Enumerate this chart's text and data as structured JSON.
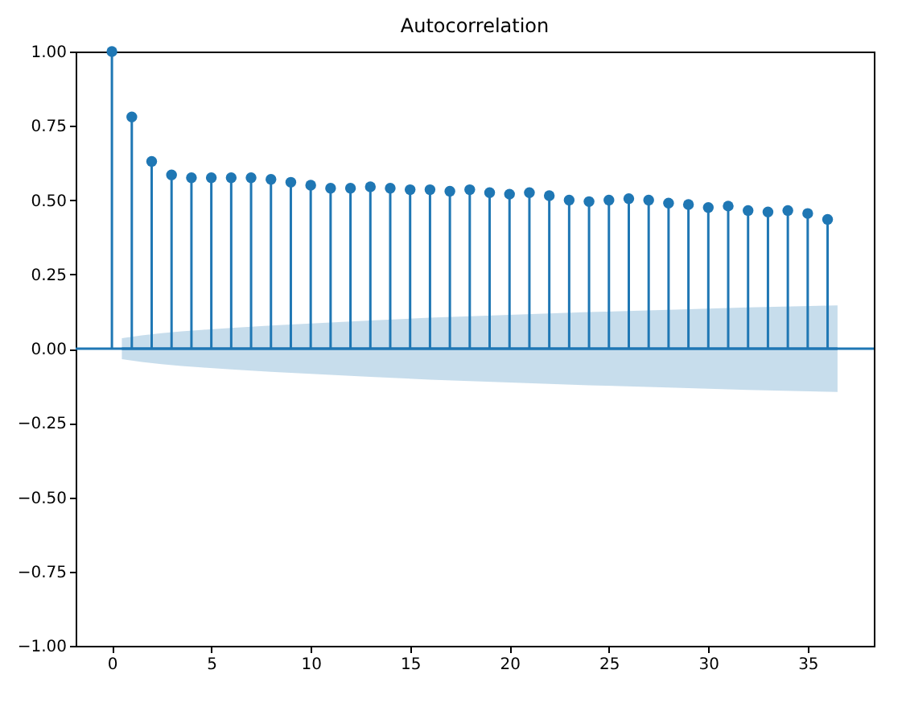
{
  "chart_data": {
    "type": "lollipop",
    "title": "Autocorrelation",
    "x": [
      0,
      1,
      2,
      3,
      4,
      5,
      6,
      7,
      8,
      9,
      10,
      11,
      12,
      13,
      14,
      15,
      16,
      17,
      18,
      19,
      20,
      21,
      22,
      23,
      24,
      25,
      26,
      27,
      28,
      29,
      30,
      31,
      32,
      33,
      34,
      35,
      36
    ],
    "series": [
      {
        "color": "#1f77b4",
        "marker": "circle",
        "values": [
          1.0,
          0.78,
          0.63,
          0.585,
          0.575,
          0.575,
          0.575,
          0.575,
          0.57,
          0.56,
          0.55,
          0.54,
          0.54,
          0.545,
          0.54,
          0.535,
          0.535,
          0.53,
          0.535,
          0.525,
          0.52,
          0.525,
          0.515,
          0.5,
          0.495,
          0.5,
          0.505,
          0.5,
          0.49,
          0.485,
          0.475,
          0.48,
          0.465,
          0.46,
          0.465,
          0.455,
          0.435
        ]
      },
      {
        "type": "line",
        "marker": "none",
        "color": "#1f77b4",
        "x": [
          0.5,
          1.5,
          2.5,
          3.5,
          4.5,
          6,
          8,
          10,
          13,
          16,
          20,
          24,
          28,
          32,
          36.5
        ],
        "values": [
          0,
          0,
          0,
          0,
          0,
          0,
          0,
          0,
          0,
          0,
          0,
          0,
          0,
          0,
          0
        ],
        "lower": [
          -0.035,
          -0.045,
          -0.052,
          -0.058,
          -0.063,
          -0.07,
          -0.078,
          -0.085,
          -0.095,
          -0.104,
          -0.114,
          -0.123,
          -0.131,
          -0.139,
          -0.146
        ],
        "upper": [
          0.035,
          0.045,
          0.052,
          0.058,
          0.063,
          0.07,
          0.078,
          0.085,
          0.095,
          0.104,
          0.114,
          0.123,
          0.131,
          0.139,
          0.146
        ]
      }
    ],
    "ref_lines": [
      {
        "axis": "y",
        "value": 0,
        "color": "#1f77b4"
      }
    ],
    "xlim": [
      -1.825,
      38.325
    ],
    "xticks": [
      0,
      5,
      10,
      15,
      20,
      25,
      30,
      35
    ],
    "ylim": [
      -1,
      1
    ],
    "yticks": [
      {
        "value": -1,
        "label": "−1.00"
      },
      {
        "value": -0.75,
        "label": "−0.75"
      },
      {
        "value": -0.5,
        "label": "−0.50"
      },
      {
        "value": -0.25,
        "label": "−0.25"
      },
      {
        "value": 0,
        "label": "0.00"
      },
      {
        "value": 0.25,
        "label": "0.25"
      },
      {
        "value": 0.5,
        "label": "0.50"
      },
      {
        "value": 0.75,
        "label": "0.75"
      },
      {
        "value": 1,
        "label": "1.00"
      }
    ]
  }
}
